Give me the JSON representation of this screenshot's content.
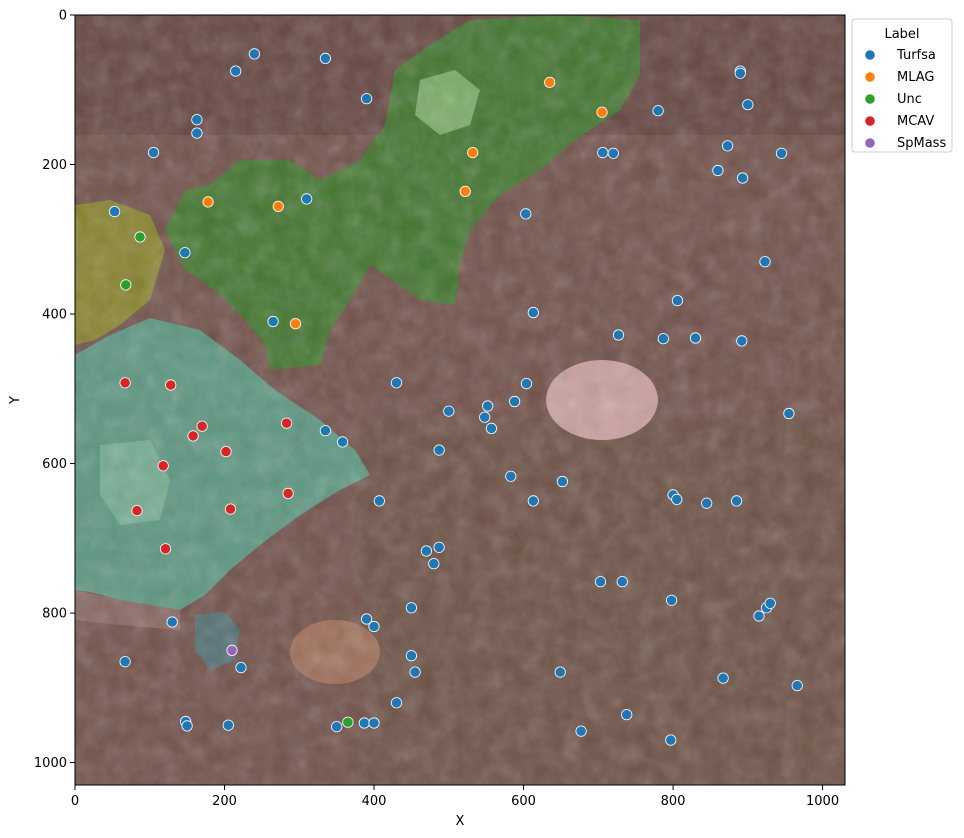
{
  "chart_data": {
    "type": "scatter",
    "xlabel": "X",
    "ylabel": "Y",
    "xlim": [
      0,
      1030
    ],
    "ylim": [
      1030,
      0
    ],
    "y_inverted": true,
    "x_ticks": [
      0,
      200,
      400,
      600,
      800,
      1000
    ],
    "y_ticks": [
      0,
      200,
      400,
      600,
      800,
      1000
    ],
    "grid": false,
    "legend_title": "Label",
    "legend_position": "outside-top-right",
    "background": "coral reef photograph with colored segmentation overlays",
    "series": [
      {
        "name": "Turfsa",
        "color": "#1f77b4",
        "points": [
          [
            240,
            52
          ],
          [
            335,
            58
          ],
          [
            215,
            75
          ],
          [
            890,
            75
          ],
          [
            890,
            78
          ],
          [
            390,
            112
          ],
          [
            900,
            120
          ],
          [
            780,
            128
          ],
          [
            163,
            140
          ],
          [
            163,
            158
          ],
          [
            105,
            184
          ],
          [
            706,
            184
          ],
          [
            720,
            185
          ],
          [
            873,
            175
          ],
          [
            945,
            185
          ],
          [
            860,
            208
          ],
          [
            893,
            218
          ],
          [
            310,
            246
          ],
          [
            53,
            263
          ],
          [
            603,
            266
          ],
          [
            147,
            318
          ],
          [
            923,
            330
          ],
          [
            806,
            382
          ],
          [
            613,
            398
          ],
          [
            265,
            410
          ],
          [
            727,
            428
          ],
          [
            787,
            433
          ],
          [
            830,
            432
          ],
          [
            892,
            436
          ],
          [
            430,
            492
          ],
          [
            604,
            493
          ],
          [
            588,
            517
          ],
          [
            552,
            523
          ],
          [
            500,
            530
          ],
          [
            548,
            538
          ],
          [
            955,
            533
          ],
          [
            557,
            553
          ],
          [
            335,
            556
          ],
          [
            358,
            571
          ],
          [
            487,
            582
          ],
          [
            583,
            617
          ],
          [
            652,
            624
          ],
          [
            407,
            650
          ],
          [
            613,
            650
          ],
          [
            800,
            642
          ],
          [
            805,
            648
          ],
          [
            845,
            653
          ],
          [
            885,
            650
          ],
          [
            470,
            717
          ],
          [
            487,
            712
          ],
          [
            480,
            734
          ],
          [
            703,
            758
          ],
          [
            732,
            758
          ],
          [
            798,
            783
          ],
          [
            450,
            793
          ],
          [
            925,
            793
          ],
          [
            930,
            787
          ],
          [
            915,
            804
          ],
          [
            130,
            812
          ],
          [
            390,
            808
          ],
          [
            400,
            818
          ],
          [
            67,
            865
          ],
          [
            222,
            873
          ],
          [
            450,
            857
          ],
          [
            455,
            879
          ],
          [
            649,
            879
          ],
          [
            867,
            887
          ],
          [
            966,
            897
          ],
          [
            430,
            920
          ],
          [
            738,
            936
          ],
          [
            148,
            945
          ],
          [
            150,
            951
          ],
          [
            205,
            950
          ],
          [
            350,
            952
          ],
          [
            387,
            947
          ],
          [
            400,
            947
          ],
          [
            677,
            958
          ],
          [
            797,
            970
          ]
        ]
      },
      {
        "name": "MLAG",
        "color": "#ff7f0e",
        "points": [
          [
            635,
            90
          ],
          [
            705,
            130
          ],
          [
            532,
            184
          ],
          [
            522,
            236
          ],
          [
            178,
            250
          ],
          [
            272,
            256
          ],
          [
            295,
            413
          ]
        ]
      },
      {
        "name": "Unc",
        "color": "#2ca02c",
        "points": [
          [
            87,
            297
          ],
          [
            68,
            361
          ],
          [
            365,
            946
          ]
        ]
      },
      {
        "name": "MCAV",
        "color": "#d62728",
        "points": [
          [
            67,
            492
          ],
          [
            128,
            495
          ],
          [
            170,
            550
          ],
          [
            158,
            563
          ],
          [
            283,
            546
          ],
          [
            202,
            584
          ],
          [
            118,
            603
          ],
          [
            285,
            640
          ],
          [
            83,
            663
          ],
          [
            208,
            661
          ],
          [
            121,
            714
          ]
        ]
      },
      {
        "name": "SpMass",
        "color": "#9467bd",
        "points": [
          [
            210,
            850
          ]
        ]
      }
    ]
  }
}
